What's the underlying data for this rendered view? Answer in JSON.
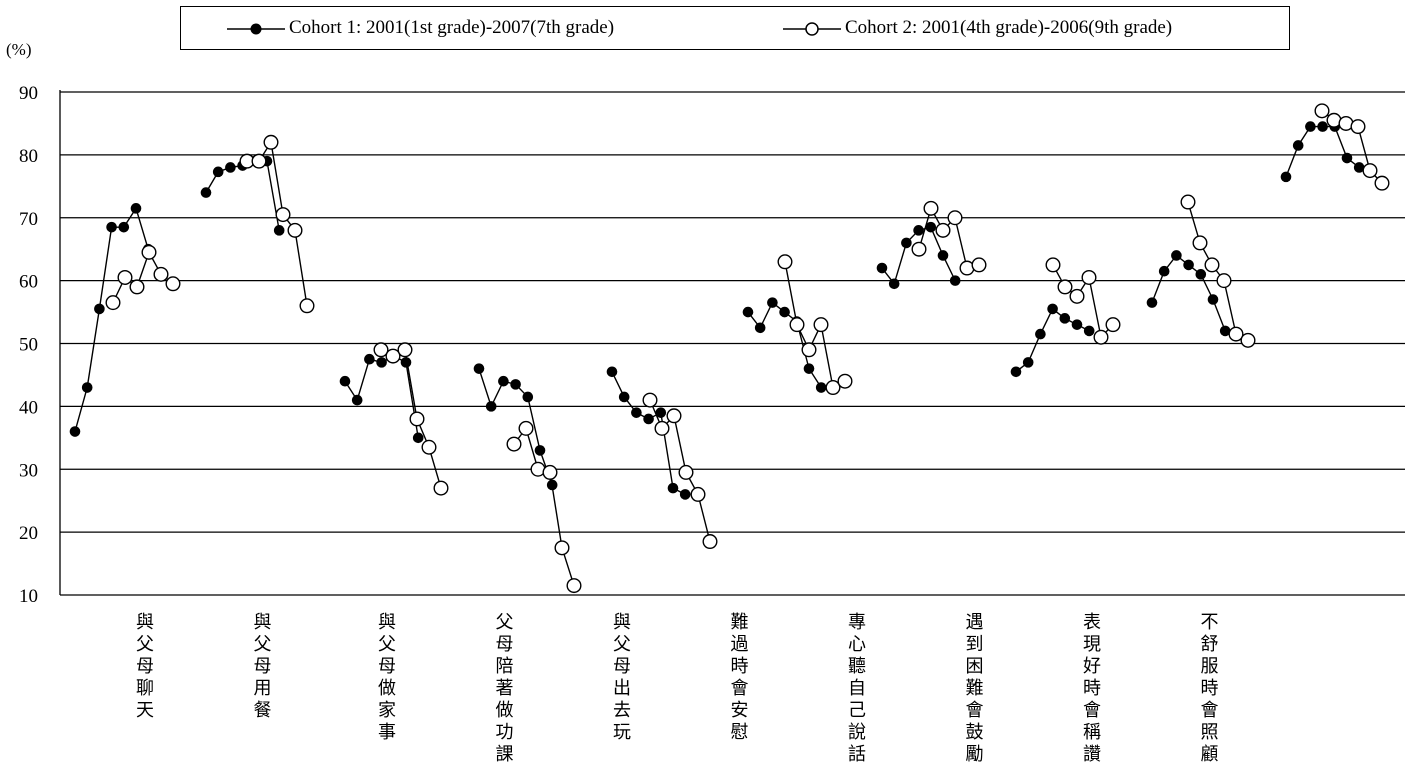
{
  "chart_data": {
    "type": "line",
    "y_unit_label": "(%)",
    "ylim": [
      10,
      90
    ],
    "yticks": [
      10,
      20,
      30,
      40,
      50,
      60,
      70,
      80,
      90
    ],
    "grid": true,
    "legend_placement": "top",
    "categories": [
      "與父母聊天",
      "與父母用餐",
      "與父母做家事",
      "父母陪著做功課",
      "與父母出去玩",
      "難過時會安慰",
      "專心聽自己說話",
      "遇到困難會鼓勵",
      "表現好時會稱讚",
      "不舒服時會照顧"
    ],
    "series": [
      {
        "name": "Cohort 1: 2001(1st grade)-2007(7th grade)",
        "marker": "filled-circle",
        "values": [
          [
            36,
            43,
            55.5,
            68.5,
            68.5,
            71.5,
            65
          ],
          [
            74,
            77.3,
            78,
            78.3,
            79,
            79,
            68
          ],
          [
            44,
            41,
            47.5,
            47,
            48,
            47,
            35
          ],
          [
            46,
            40,
            44,
            43.5,
            41.5,
            33,
            27.5
          ],
          [
            45.5,
            41.5,
            39,
            38,
            39,
            27,
            26
          ],
          [
            55,
            52.5,
            56.5,
            55,
            53.5,
            46,
            43
          ],
          [
            62,
            59.5,
            66,
            68,
            68.5,
            64,
            60
          ],
          [
            45.5,
            47,
            51.5,
            55.5,
            54,
            53,
            52
          ],
          [
            56.5,
            61.5,
            64,
            62.5,
            61,
            57,
            52
          ],
          [
            76.5,
            81.5,
            84.5,
            84.5,
            84.5,
            79.5,
            78
          ]
        ]
      },
      {
        "name": "Cohort 2: 2001(4th grade)-2006(9th grade)",
        "marker": "open-circle",
        "values": [
          [
            56.5,
            60.5,
            59,
            64.5,
            61,
            59.5
          ],
          [
            79,
            79,
            82,
            70.5,
            68,
            56
          ],
          [
            49,
            48,
            49,
            38,
            33.5,
            27
          ],
          [
            34,
            36.5,
            30,
            29.5,
            17.5,
            11.5
          ],
          [
            41,
            36.5,
            38.5,
            29.5,
            26,
            18.5
          ],
          [
            63,
            53,
            49,
            53,
            43,
            44
          ],
          [
            65,
            71.5,
            68,
            70,
            62,
            62.5
          ],
          [
            62.5,
            59,
            57.5,
            60.5,
            51,
            53
          ],
          [
            72.5,
            66,
            62.5,
            60,
            51.5,
            50.5
          ],
          [
            87,
            85.5,
            85,
            84.5,
            77.5,
            75.5
          ]
        ]
      }
    ]
  }
}
